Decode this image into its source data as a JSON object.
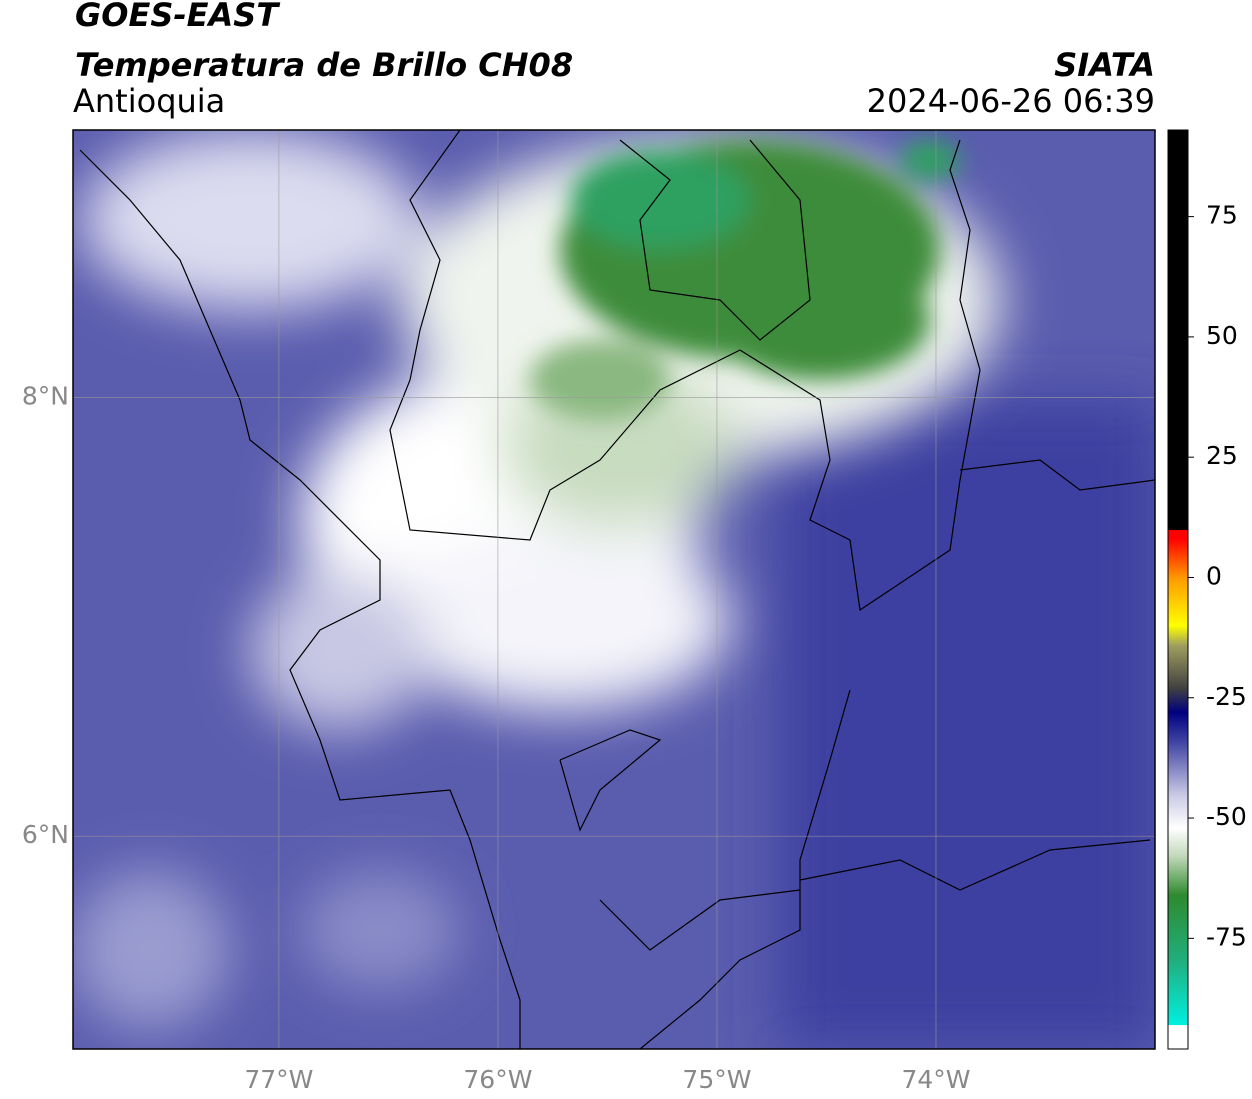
{
  "header": {
    "title": "GOES-EAST",
    "subtitle": "Temperatura de Brillo CH08",
    "region": "Antioquia",
    "source": "SIATA",
    "datetime": "2024-06-26 06:39"
  },
  "map": {
    "xlim": [
      -77.94,
      -73.0
    ],
    "ylim": [
      5.03,
      9.22
    ],
    "xticks": [
      {
        "value": -77,
        "label": "77°W"
      },
      {
        "value": -76,
        "label": "76°W"
      },
      {
        "value": -75,
        "label": "75°W"
      },
      {
        "value": -74,
        "label": "74°W"
      }
    ],
    "yticks": [
      {
        "value": 8,
        "label": "8°N"
      },
      {
        "value": 6,
        "label": "6°N"
      }
    ],
    "grid": true
  },
  "colorbar": {
    "lim": [
      -98,
      93
    ],
    "ticks": [
      75,
      50,
      25,
      0,
      -25,
      -50,
      -75
    ],
    "stops": [
      {
        "value": -98,
        "color": "#ffffff"
      },
      {
        "value": -93,
        "color": "#ffffff"
      },
      {
        "value": -92.9,
        "color": "#00f0e0"
      },
      {
        "value": -80,
        "color": "#20b080"
      },
      {
        "value": -66,
        "color": "#2e8a2e"
      },
      {
        "value": -58,
        "color": "#c0d8b8"
      },
      {
        "value": -52,
        "color": "#ffffff"
      },
      {
        "value": -45,
        "color": "#c8c8e4"
      },
      {
        "value": -35,
        "color": "#4a4ea8"
      },
      {
        "value": -28,
        "color": "#000080"
      },
      {
        "value": -23,
        "color": "#404040"
      },
      {
        "value": -14,
        "color": "#a0a060"
      },
      {
        "value": -10,
        "color": "#ffff00"
      },
      {
        "value": 0,
        "color": "#ff9900"
      },
      {
        "value": 8,
        "color": "#ff0000"
      },
      {
        "value": 9.9,
        "color": "#ff0000"
      },
      {
        "value": 10,
        "color": "#000000"
      },
      {
        "value": 93,
        "color": "#000000"
      }
    ]
  }
}
